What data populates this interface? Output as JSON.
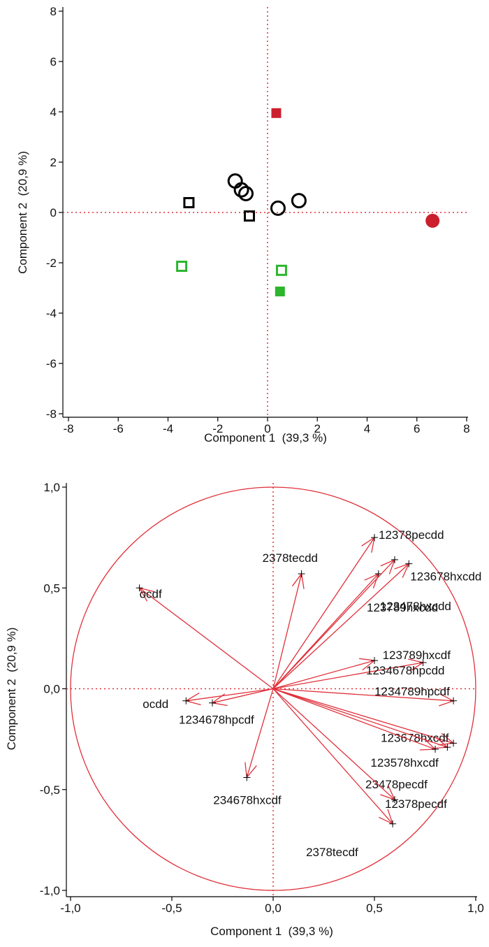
{
  "chart_data": [
    {
      "type": "scatter",
      "xlabel": "Component 1  (39,3 %)",
      "ylabel": "Component 2  (20,9 %)",
      "xlim": [
        -8,
        8
      ],
      "ylim": [
        -8,
        8
      ],
      "xticks": [
        -8,
        -6,
        -4,
        -2,
        0,
        2,
        4,
        6,
        8
      ],
      "yticks": [
        -8,
        -6,
        -4,
        -2,
        0,
        2,
        4,
        6,
        8
      ],
      "reference_lines": true,
      "reference_color": "#e0303a",
      "series": [
        {
          "color": "#cc1f2e",
          "marker": "square",
          "filled": true,
          "x": [
            0.35
          ],
          "values": [
            3.95
          ]
        },
        {
          "color": "#cc1f2e",
          "marker": "circle",
          "filled": true,
          "x": [
            6.63
          ],
          "values": [
            -0.33
          ]
        },
        {
          "color": "#000000",
          "marker": "circle",
          "filled": false,
          "x": [
            -1.3,
            -1.05,
            -0.87,
            0.42,
            1.26
          ],
          "values": [
            1.25,
            0.9,
            0.75,
            0.17,
            0.47
          ]
        },
        {
          "color": "#000000",
          "marker": "square",
          "filled": false,
          "x": [
            -3.16,
            -0.73
          ],
          "values": [
            0.39,
            -0.14
          ]
        },
        {
          "color": "#2db52d",
          "marker": "square",
          "filled": false,
          "x": [
            -3.45,
            0.56
          ],
          "values": [
            -2.14,
            -2.3
          ]
        },
        {
          "color": "#2db52d",
          "marker": "square",
          "filled": true,
          "x": [
            0.5
          ],
          "values": [
            -3.14
          ]
        }
      ]
    },
    {
      "type": "loading",
      "xlabel": "Component 1  (39,3 %)",
      "ylabel": "Component 2  (20,9 %)",
      "xlim": [
        -1,
        1
      ],
      "ylim": [
        -1,
        1
      ],
      "xticks": [
        {
          "value": -1,
          "label": "-1,0"
        },
        {
          "value": -0.5,
          "label": "-0,5"
        },
        {
          "value": 0,
          "label": "0,0"
        },
        {
          "value": 0.5,
          "label": "0,5"
        },
        {
          "value": 1,
          "label": "1,0"
        }
      ],
      "yticks": [
        {
          "value": -1,
          "label": "-1,0"
        },
        {
          "value": -0.5,
          "label": "-0,5"
        },
        {
          "value": 0,
          "label": "0,0"
        },
        {
          "value": 0.5,
          "label": "0,5"
        },
        {
          "value": 1,
          "label": "1,0"
        }
      ],
      "reference_lines": true,
      "reference_color": "#e0303a",
      "color": "#e0303a",
      "circle": true,
      "labels": [
        "12378pecdd",
        "123678hxcdd",
        "123478hxcdd",
        "123789hxcdd",
        "2378tecdd",
        "ocdf",
        "123789hxcdf",
        "1234678hpcdd",
        "1234789hpcdf",
        "123678hxcdf",
        "123578hxcdf",
        "23478pecdf",
        "12378pecdf",
        "2378tecdf",
        "ocdd",
        "1234678hpcdf",
        "234678hxcdf"
      ],
      "x": [
        0.5,
        0.67,
        0.52,
        0.6,
        0.14,
        -0.66,
        0.74,
        0.5,
        0.89,
        0.89,
        0.86,
        0.8,
        0.6,
        0.59,
        -0.43,
        -0.3,
        -0.13
      ],
      "values": [
        0.75,
        0.62,
        0.57,
        0.64,
        0.57,
        0.5,
        0.13,
        0.14,
        -0.06,
        -0.27,
        -0.29,
        -0.3,
        -0.55,
        -0.67,
        -0.06,
        -0.07,
        -0.44
      ]
    }
  ]
}
